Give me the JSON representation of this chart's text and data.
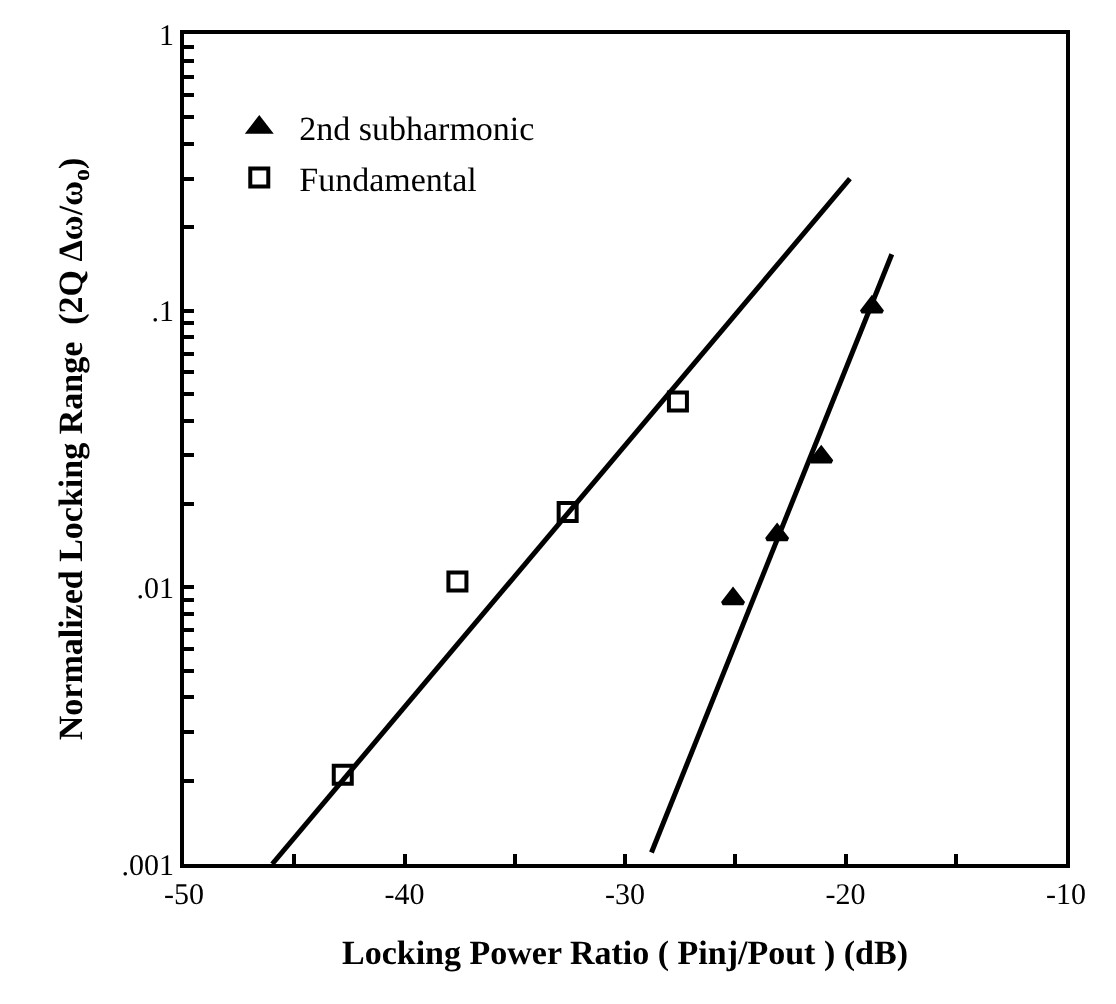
{
  "chart_data": {
    "type": "scatter",
    "xlabel": "Locking Power Ratio ( Pinj/Pout ) (dB)",
    "ylabel": "Normalized Locking Range  (2Q Δω/ω$_{o}$)",
    "log": "y",
    "legend": "top left",
    "xlim": [
      -50,
      -10
    ],
    "xticks": [
      -50,
      {
        "value": -45,
        "label": null
      },
      -40,
      {
        "value": -35,
        "label": null
      },
      -30,
      {
        "value": -25,
        "label": null
      },
      -20,
      {
        "value": -15,
        "label": null
      },
      -10
    ],
    "ylim": [
      0.001,
      1
    ],
    "yticks": [
      {
        "value": 0.001,
        "label": ".001"
      },
      {
        "value": 0.002,
        "label": null
      },
      {
        "value": 0.003,
        "label": null
      },
      {
        "value": 0.004,
        "label": null
      },
      {
        "value": 0.005,
        "label": null
      },
      {
        "value": 0.006,
        "label": null
      },
      {
        "value": 0.007,
        "label": null
      },
      {
        "value": 0.008,
        "label": null
      },
      {
        "value": 0.009,
        "label": null
      },
      {
        "value": 0.01,
        "label": ".01"
      },
      {
        "value": 0.02,
        "label": null
      },
      {
        "value": 0.03,
        "label": null
      },
      {
        "value": 0.04,
        "label": null
      },
      {
        "value": 0.05,
        "label": null
      },
      {
        "value": 0.06,
        "label": null
      },
      {
        "value": 0.07,
        "label": null
      },
      {
        "value": 0.08,
        "label": null
      },
      {
        "value": 0.09,
        "label": null
      },
      {
        "value": 0.1,
        "label": ".1"
      },
      {
        "value": 0.2,
        "label": null
      },
      {
        "value": 0.3,
        "label": null
      },
      {
        "value": 0.4,
        "label": null
      },
      {
        "value": 0.5,
        "label": null
      },
      {
        "value": 0.6,
        "label": null
      },
      {
        "value": 0.7,
        "label": null
      },
      {
        "value": 0.8,
        "label": null
      },
      {
        "value": 0.9,
        "label": null
      },
      {
        "value": 1,
        "label": "1"
      }
    ],
    "series": [
      {
        "name": "2nd subharmonic",
        "marker": "triangle",
        "color": "#000000",
        "x": [
          -25.1,
          -23.1,
          -21.1,
          -18.8
        ],
        "values": [
          0.0091,
          0.0155,
          0.0296,
          0.103
        ]
      },
      {
        "name": "Fundamental",
        "marker": "square",
        "color": "#000000",
        "x": [
          -42.8,
          -37.6,
          -32.6,
          -27.6
        ],
        "values": [
          0.0021,
          0.0105,
          0.0187,
          0.047
        ]
      },
      {
        "type": "line",
        "marker": "none",
        "line_style": "solid",
        "color": "#000000",
        "x": [
          -46,
          -19.8
        ],
        "values": [
          0.001,
          0.3
        ]
      },
      {
        "type": "line",
        "marker": "none",
        "line_style": "solid",
        "color": "#000000",
        "x": [
          -28.8,
          -17.9
        ],
        "values": [
          0.0011,
          0.16
        ]
      }
    ]
  }
}
